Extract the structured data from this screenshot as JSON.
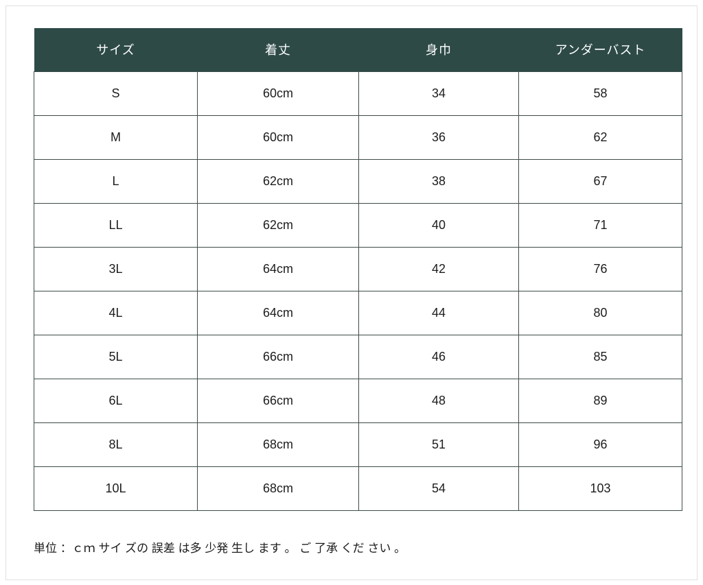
{
  "colors": {
    "header_bg": "#2d4a47",
    "header_text": "#ffffff",
    "cell_border": "#3d4b49",
    "body_text": "#1c1c1c",
    "frame_border": "#e0e0e0",
    "page_bg": "#ffffff"
  },
  "chart_data": {
    "type": "table",
    "columns": [
      "サイズ",
      "着丈",
      "身巾",
      "アンダーバスト"
    ],
    "rows": [
      [
        "S",
        "60cm",
        "34",
        "58"
      ],
      [
        "M",
        "60cm",
        "36",
        "62"
      ],
      [
        "L",
        "62cm",
        "38",
        "67"
      ],
      [
        "LL",
        "62cm",
        "40",
        "71"
      ],
      [
        "3L",
        "64cm",
        "42",
        "76"
      ],
      [
        "4L",
        "64cm",
        "44",
        "80"
      ],
      [
        "5L",
        "66cm",
        "46",
        "85"
      ],
      [
        "6L",
        "66cm",
        "48",
        "89"
      ],
      [
        "8L",
        "68cm",
        "51",
        "96"
      ],
      [
        "10L",
        "68cm",
        "54",
        "103"
      ]
    ],
    "unit_note": "単位 ：ｃｍ サイ ズの 誤差 は多 少発 生し ます 。 ご 了承 くだ さい 。"
  }
}
